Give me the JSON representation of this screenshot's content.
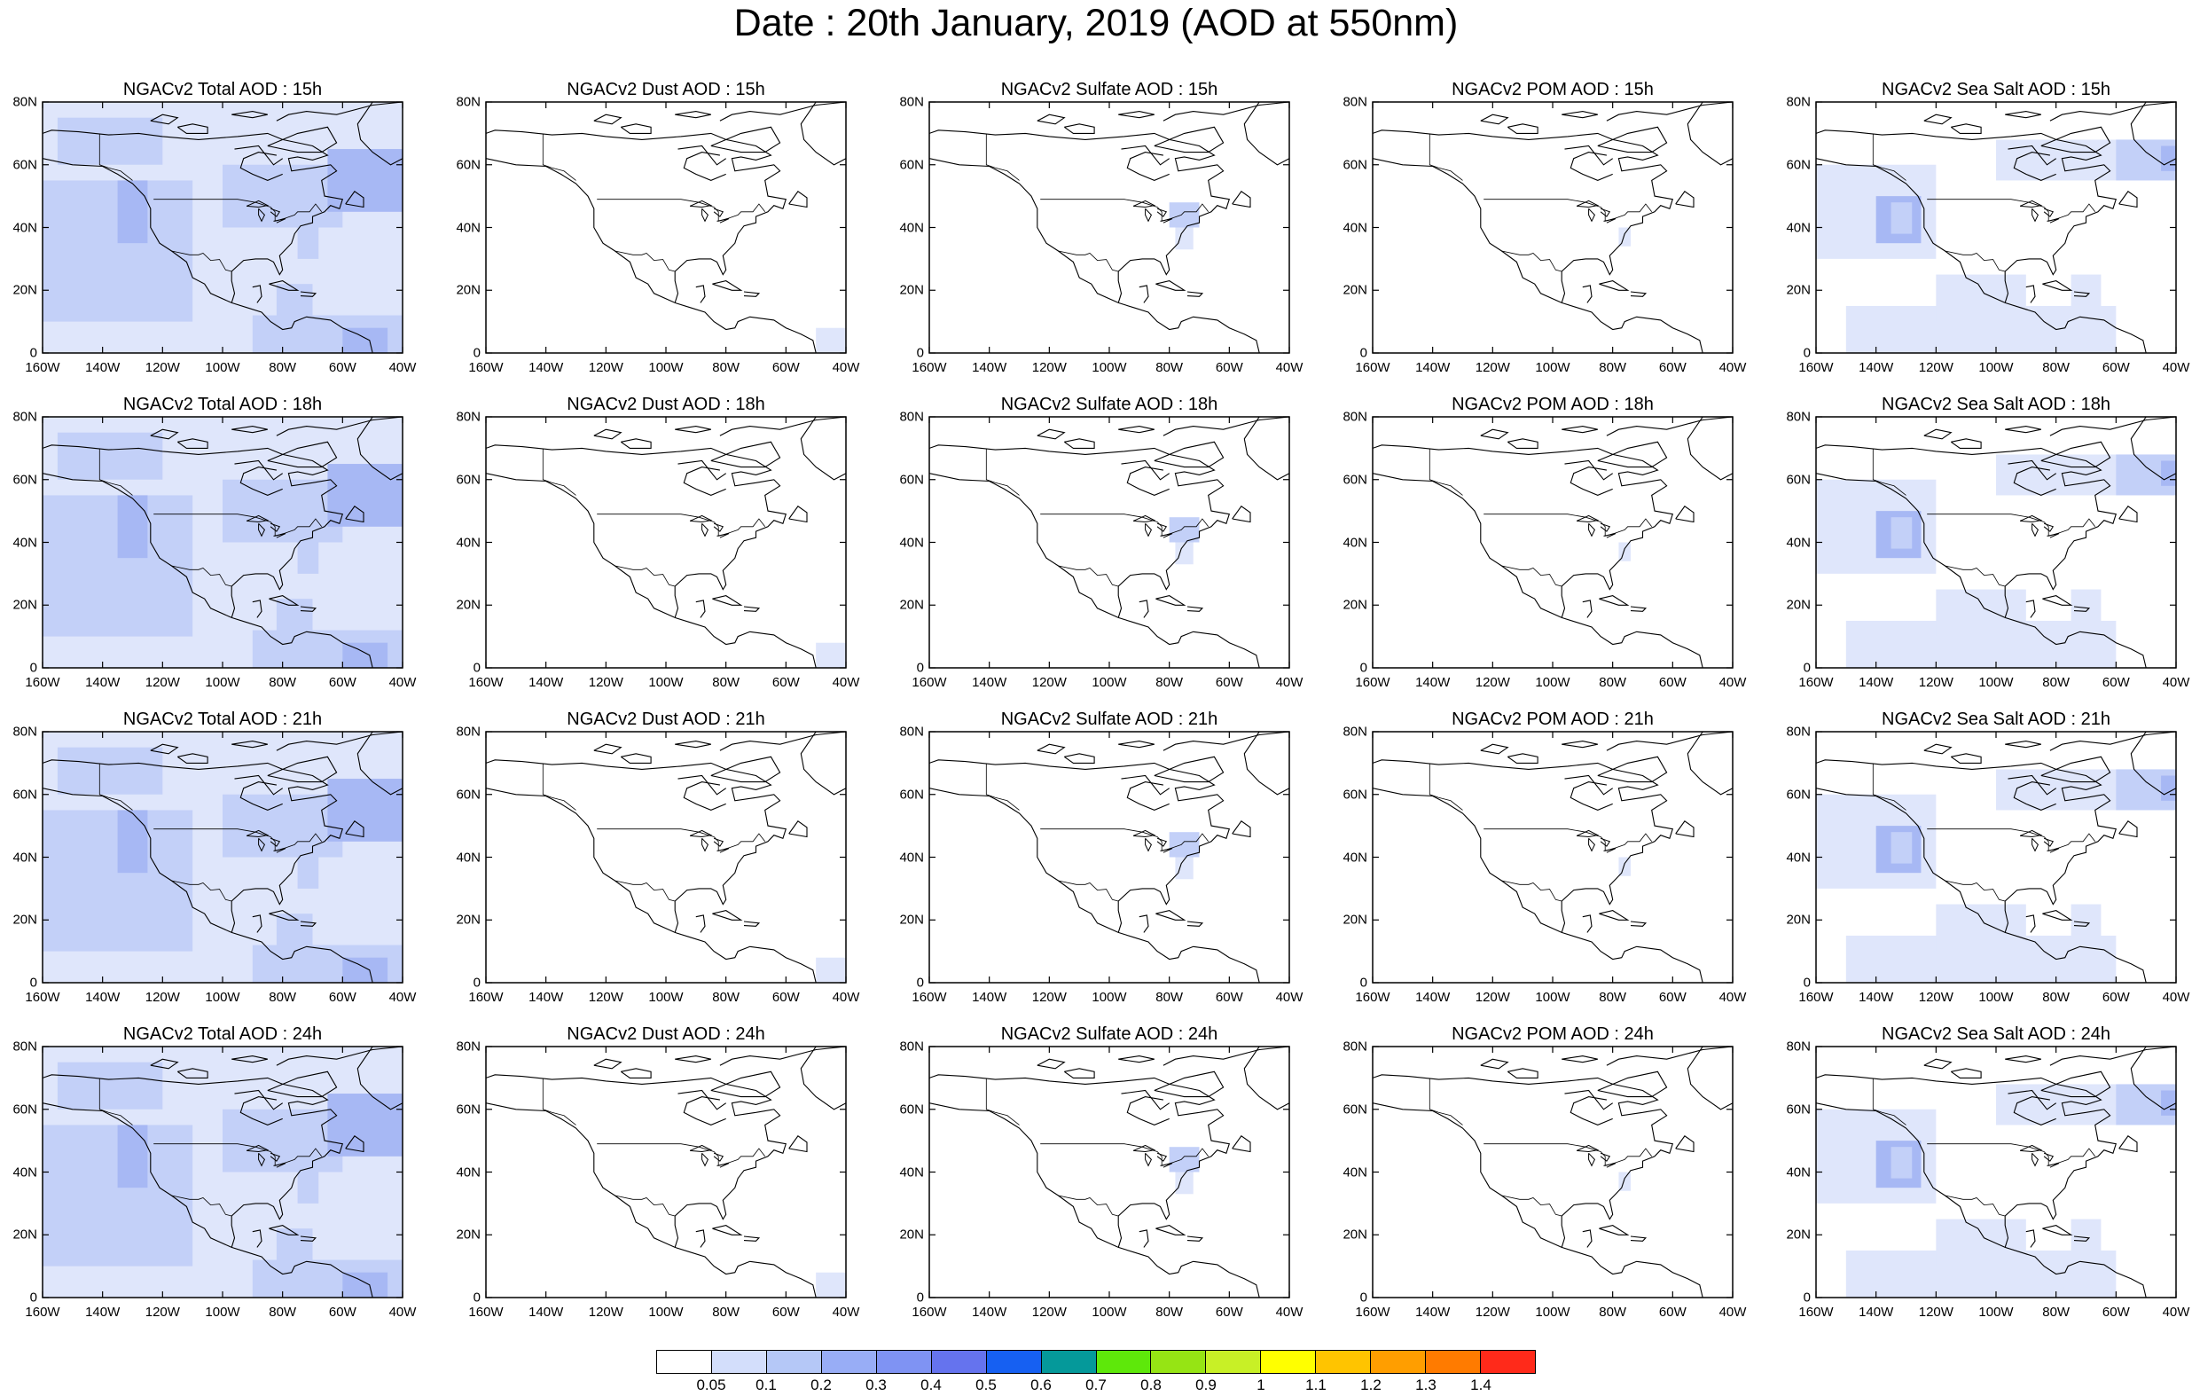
{
  "title": "Date : 20th January, 2019 (AOD at 550nm)",
  "panels": [
    [
      "NGACv2 Total AOD : 15h",
      "NGACv2 Dust AOD : 15h",
      "NGACv2 Sulfate AOD : 15h",
      "NGACv2 POM AOD : 15h",
      "NGACv2 Sea Salt AOD : 15h"
    ],
    [
      "NGACv2 Total AOD : 18h",
      "NGACv2 Dust AOD : 18h",
      "NGACv2 Sulfate AOD : 18h",
      "NGACv2 POM AOD : 18h",
      "NGACv2 Sea Salt AOD : 18h"
    ],
    [
      "NGACv2 Total AOD : 21h",
      "NGACv2 Dust AOD : 21h",
      "NGACv2 Sulfate AOD : 21h",
      "NGACv2 POM AOD : 21h",
      "NGACv2 Sea Salt AOD : 21h"
    ],
    [
      "NGACv2 Total AOD : 24h",
      "NGACv2 Dust AOD : 24h",
      "NGACv2 Sulfate AOD : 24h",
      "NGACv2 POM AOD : 24h",
      "NGACv2 Sea Salt  AOD : 24h"
    ]
  ],
  "axes": {
    "lat_labels": [
      "80N",
      "60N",
      "40N",
      "20N",
      "0"
    ],
    "lon_labels": [
      "160W",
      "140W",
      "120W",
      "100W",
      "80W",
      "60W",
      "40W"
    ]
  },
  "colorbar": {
    "labels": [
      "0.05",
      "0.1",
      "0.2",
      "0.3",
      "0.4",
      "0.5",
      "0.6",
      "0.7",
      "0.8",
      "0.9",
      "1",
      "1.1",
      "1.2",
      "1.3",
      "1.4"
    ],
    "colors": [
      "#ffffff",
      "#d3defb",
      "#b5c8f7",
      "#98adf6",
      "#7f93f3",
      "#6573ee",
      "#1660f2",
      "#05999a",
      "#5ee80a",
      "#96e414",
      "#c8f026",
      "#ffff00",
      "#ffc400",
      "#ff9e00",
      "#ff7b00",
      "#ff2a1a"
    ]
  },
  "field_colors": {
    "light": "#dfe6fb",
    "medium": "#c3d0f8",
    "strong": "#a7b8f4"
  }
}
